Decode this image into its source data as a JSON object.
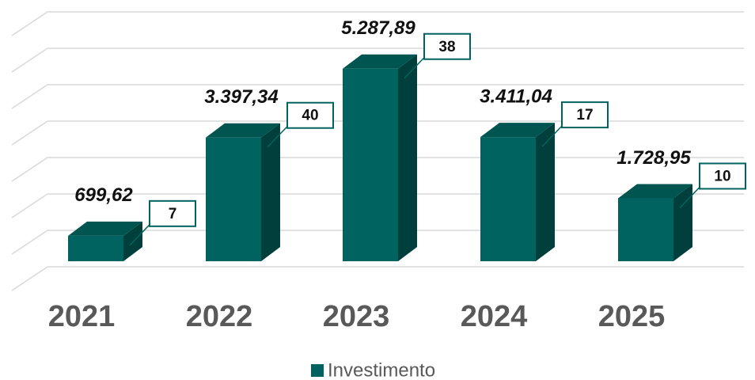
{
  "chart_data": {
    "type": "bar3d",
    "categories": [
      "2021",
      "2022",
      "2023",
      "2024",
      "2025"
    ],
    "series": [
      {
        "name": "Investimento",
        "color": "#00635f",
        "values": [
          699.62,
          3397.34,
          5287.89,
          3411.04,
          1728.95
        ],
        "value_labels": [
          "699,62",
          "3.397,34",
          "5.287,89",
          "3.411,04",
          "1.728,95"
        ]
      }
    ],
    "counts": [
      7,
      40,
      38,
      17,
      10
    ],
    "ylim": [
      0,
      7000
    ],
    "yticks": [
      0,
      1000,
      2000,
      3000,
      4000,
      5000,
      6000,
      7000
    ],
    "grid": true,
    "legend": "bottom"
  }
}
